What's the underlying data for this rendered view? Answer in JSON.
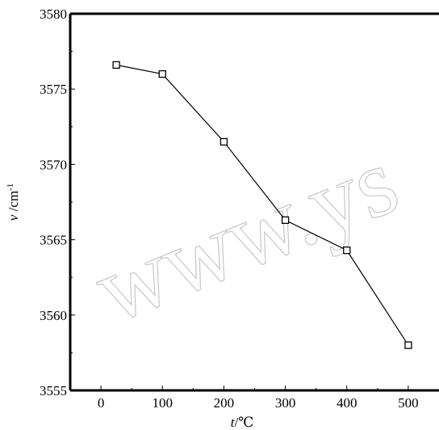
{
  "chart_data": {
    "type": "line",
    "title": "",
    "xlabel": "t/℃",
    "ylabel": "v /cm-1",
    "xlim": [
      -50,
      550
    ],
    "ylim": [
      3555,
      3580
    ],
    "xticks": [
      0,
      100,
      200,
      300,
      400,
      500
    ],
    "yticks": [
      3555,
      3560,
      3565,
      3570,
      3575,
      3580
    ],
    "grid": false,
    "series": [
      {
        "x": [
          25,
          100,
          200,
          300,
          400,
          500
        ],
        "y": [
          3576.6,
          3576.0,
          3571.5,
          3566.3,
          3564.3,
          3558.0
        ],
        "marker": "open-square",
        "color": "#000000"
      }
    ]
  },
  "watermark": "www.ys"
}
